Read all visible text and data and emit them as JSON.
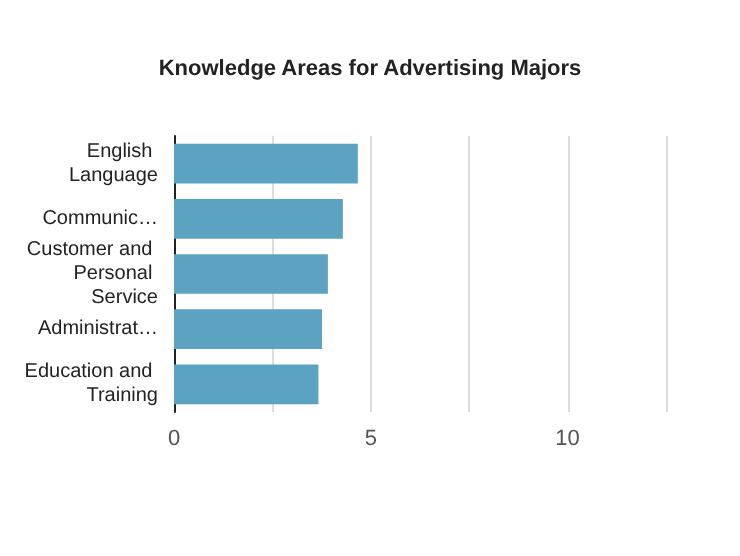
{
  "chart_data": {
    "type": "bar",
    "orientation": "horizontal",
    "title": "Knowledge Areas for Advertising Majors",
    "categories": [
      "English Language",
      "Communic…",
      "Customer and Personal Service",
      "Administrat…",
      "Education and Training"
    ],
    "values": [
      4.67,
      4.29,
      3.91,
      3.76,
      3.67
    ],
    "color": "#5ba3c0",
    "xlim": [
      0,
      12.5
    ],
    "xticks": [
      0,
      {
        "value": 2.5,
        "label": null
      },
      5,
      {
        "value": 7.5,
        "label": null
      },
      10,
      {
        "value": 12.5,
        "label": null
      }
    ],
    "grid": "x"
  }
}
